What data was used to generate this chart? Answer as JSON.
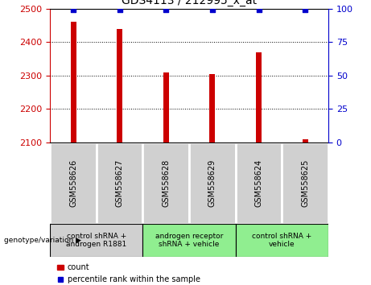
{
  "title": "GDS4113 / 212995_x_at",
  "samples": [
    "GSM558626",
    "GSM558627",
    "GSM558628",
    "GSM558629",
    "GSM558624",
    "GSM558625"
  ],
  "counts": [
    2460,
    2440,
    2310,
    2305,
    2370,
    2110
  ],
  "percentiles": [
    99,
    99,
    99,
    99,
    99,
    99
  ],
  "ylim_left": [
    2100,
    2500
  ],
  "ylim_right": [
    0,
    100
  ],
  "yticks_left": [
    2100,
    2200,
    2300,
    2400,
    2500
  ],
  "yticks_right": [
    0,
    25,
    50,
    75,
    100
  ],
  "groups": [
    {
      "label": "control shRNA +\nandrogen R1881",
      "start": 0,
      "end": 1,
      "color": "#d0d0d0"
    },
    {
      "label": "androgen receptor\nshRNA + vehicle",
      "start": 2,
      "end": 3,
      "color": "#90ee90"
    },
    {
      "label": "control shRNA +\nvehicle",
      "start": 4,
      "end": 5,
      "color": "#90ee90"
    }
  ],
  "bar_color": "#cc0000",
  "percentile_color": "#0000cc",
  "left_axis_color": "#cc0000",
  "right_axis_color": "#0000cc",
  "tick_box_color": "#d0d0d0",
  "legend_count_label": "count",
  "legend_pct_label": "percentile rank within the sample",
  "xlabel_label": "genotype/variation ▶",
  "bar_width": 0.12
}
